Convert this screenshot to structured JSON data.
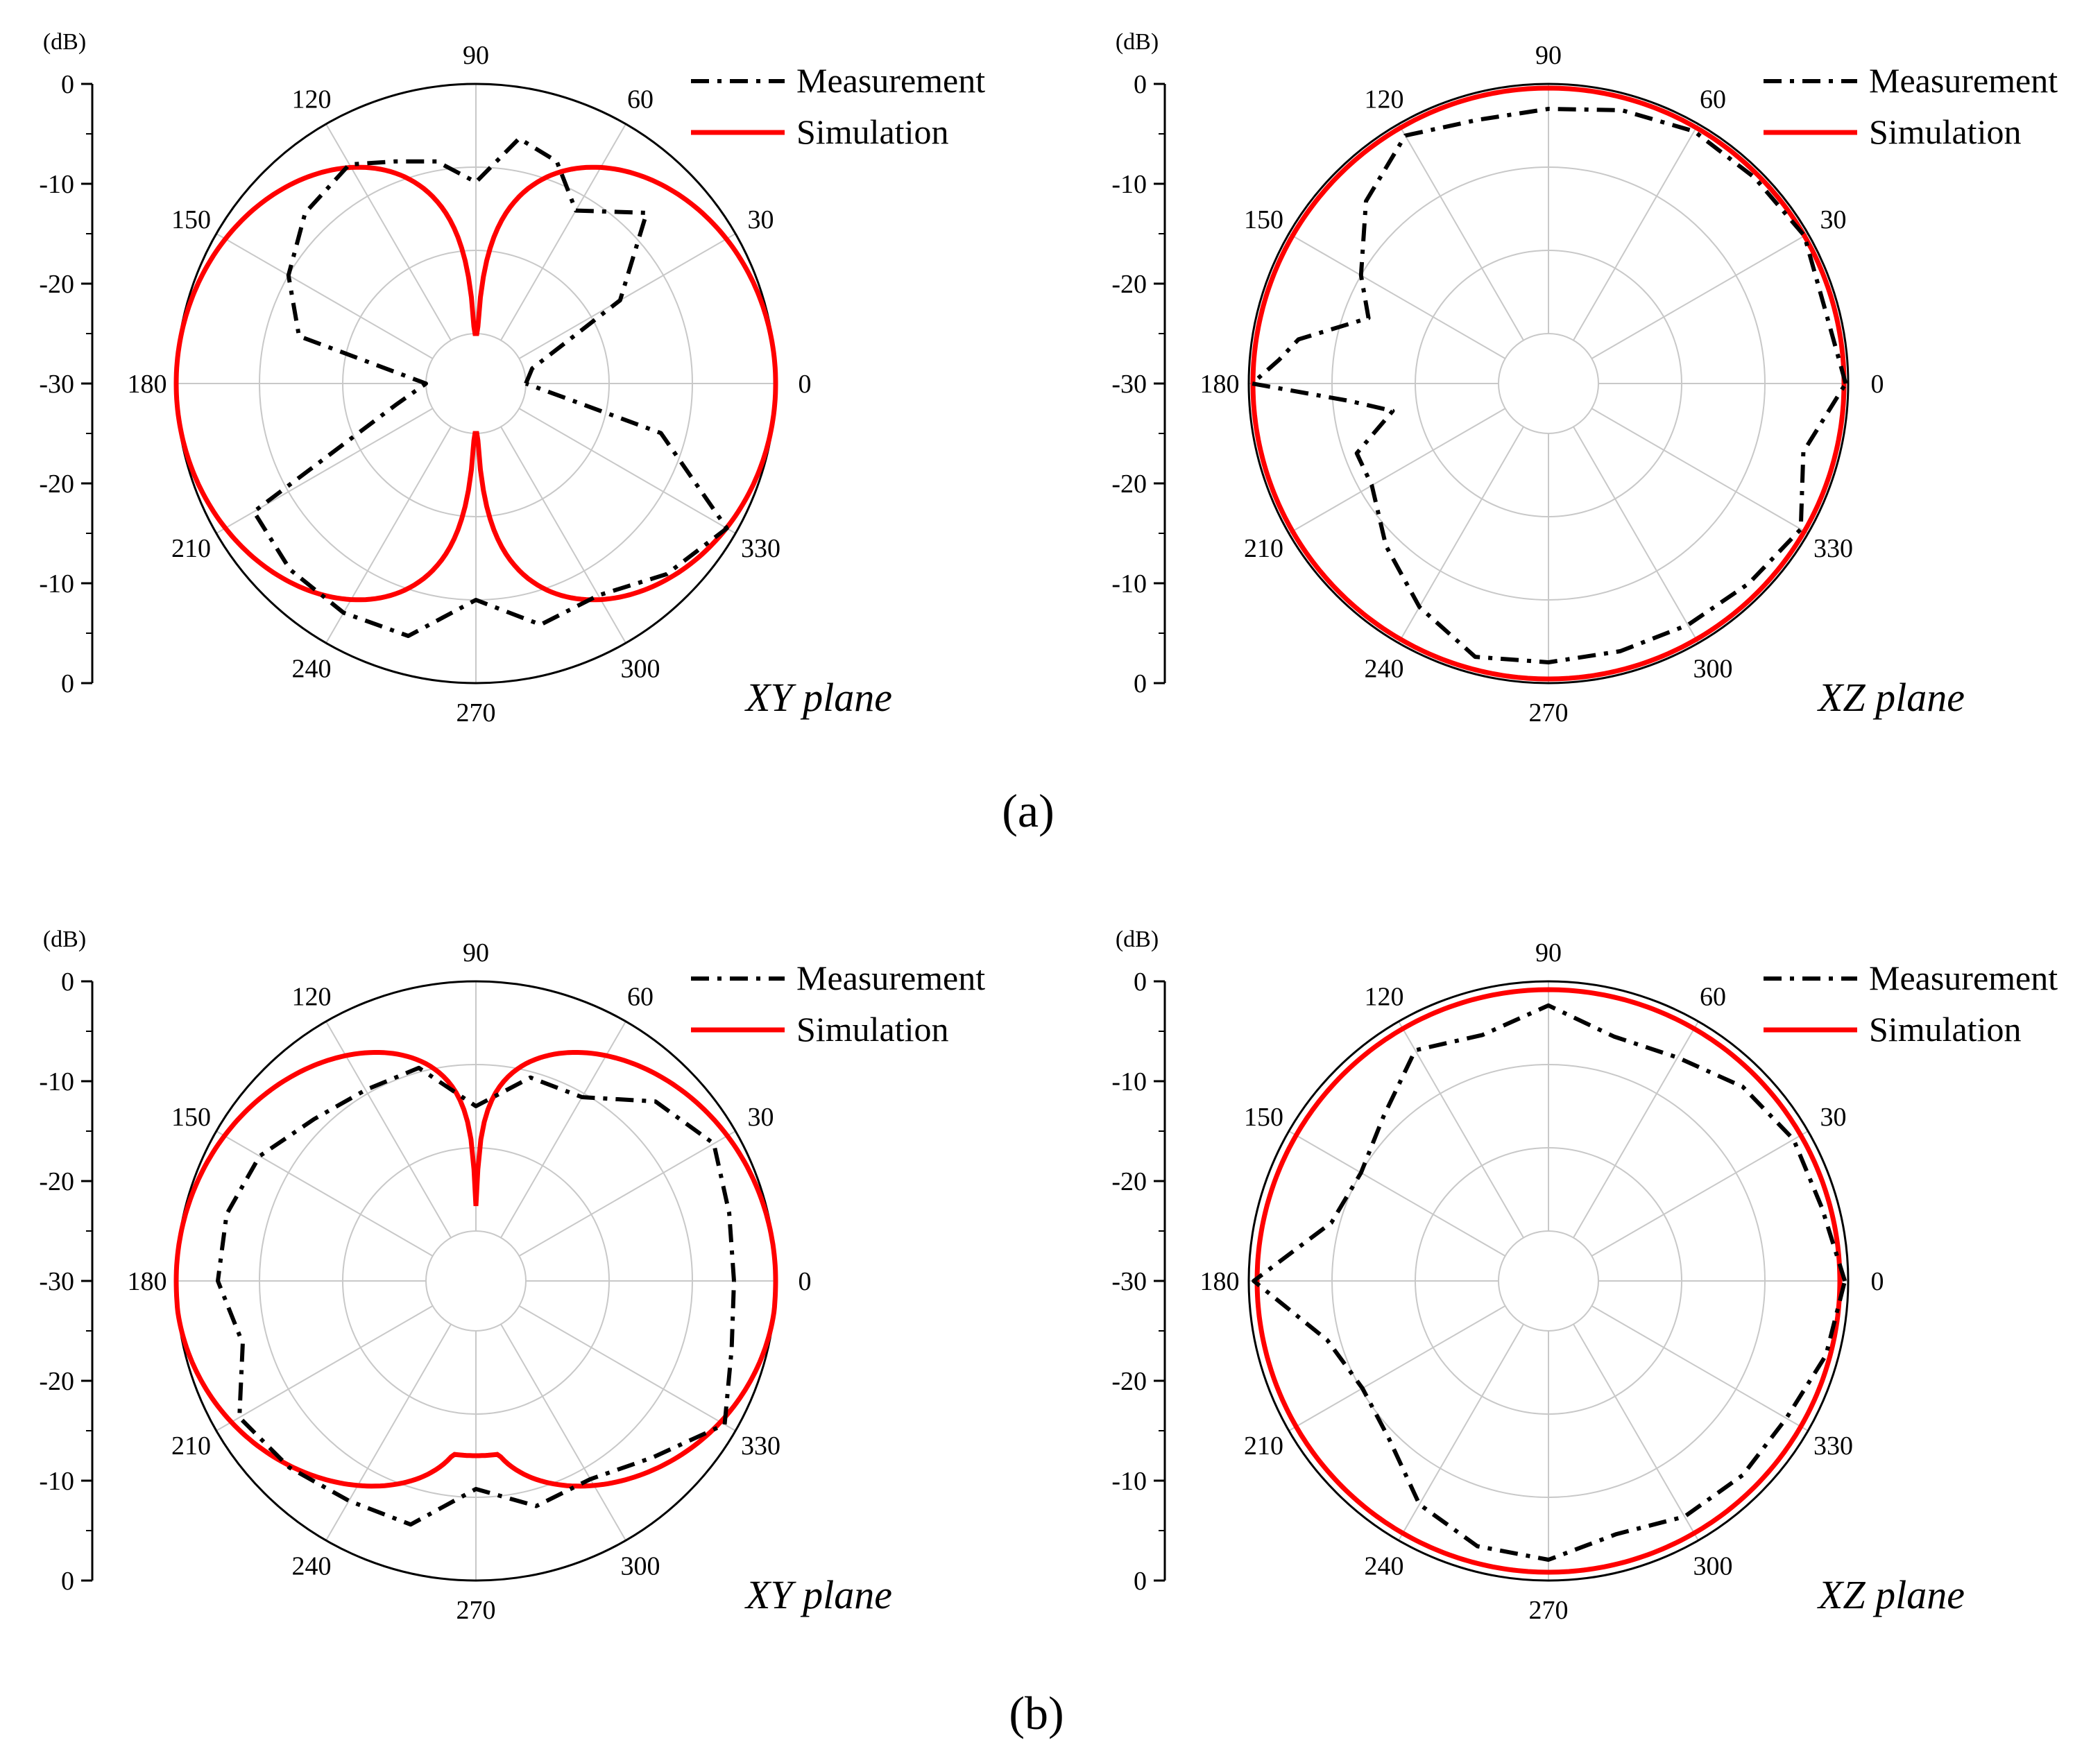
{
  "colors": {
    "measurement": "#000000",
    "simulation": "#ff0000",
    "grid": "#c8c8c8",
    "frame": "#000000"
  },
  "panel_labels": [
    "(a)",
    "(b)"
  ],
  "chart_data": [
    {
      "type": "line",
      "coordinate_system": "polar",
      "panel": "(a)",
      "plane_label": "XY plane",
      "radial_unit": "(dB)",
      "rlim": [
        -30,
        0
      ],
      "radial_ticks": [
        "0",
        "-10",
        "-20",
        "-30",
        "-20",
        "-10",
        "0"
      ],
      "angle_ticks": [
        "0",
        "30",
        "60",
        "90",
        "120",
        "150",
        "180",
        "210",
        "240",
        "270",
        "300",
        "330"
      ],
      "legend": [
        "Measurement",
        "Simulation"
      ],
      "legend_position": "top-right",
      "grid": true,
      "series": [
        {
          "name": "Measurement",
          "style": "dash-dot",
          "theta": [
            0,
            15,
            30,
            45,
            60,
            70,
            80,
            90,
            100,
            110,
            120,
            135,
            150,
            165,
            180,
            195,
            210,
            225,
            240,
            255,
            270,
            285,
            300,
            315,
            330,
            345,
            360
          ],
          "r": [
            -30,
            -29,
            -16,
            -7,
            -12,
            -7.6,
            -6.1,
            -11.8,
            -8.9,
            -7.6,
            -5.6,
            -7,
            -10,
            -14,
            -30,
            -26,
            -5.2,
            -4.4,
            -4.2,
            -4.6,
            -10,
            -6,
            -6.6,
            -3.6,
            -1.2,
            -13,
            -30
          ]
        },
        {
          "name": "Simulation",
          "style": "solid",
          "formula": "20*log10(|cos(theta)|), floor -30 dB"
        }
      ]
    },
    {
      "type": "line",
      "coordinate_system": "polar",
      "panel": "(a)",
      "plane_label": "XZ plane",
      "radial_unit": "(dB)",
      "rlim": [
        -30,
        0
      ],
      "radial_ticks": [
        "0",
        "-10",
        "-20",
        "-30",
        "-20",
        "-10",
        "0"
      ],
      "angle_ticks": [
        "0",
        "30",
        "60",
        "90",
        "120",
        "150",
        "180",
        "210",
        "240",
        "270",
        "300",
        "330"
      ],
      "legend": [
        "Measurement",
        "Simulation"
      ],
      "legend_position": "top-right",
      "grid": true,
      "series": [
        {
          "name": "Measurement",
          "style": "dash-dot",
          "theta": [
            0,
            15,
            30,
            45,
            60,
            75,
            90,
            105,
            120,
            135,
            150,
            160,
            170,
            175,
            180,
            185,
            190,
            200,
            210,
            225,
            240,
            255,
            270,
            285,
            300,
            315,
            330,
            345,
            360
          ],
          "r": [
            -0.3,
            -1.6,
            -0.5,
            -1,
            -1,
            -2,
            -3,
            -3.2,
            -1.6,
            -5,
            -10,
            -13,
            -5.5,
            -3.5,
            -0.4,
            -12,
            -17,
            -11.5,
            -11.5,
            -8.4,
            -5,
            -2,
            -2.5,
            -2.7,
            -2.5,
            -2,
            -1,
            -4.3,
            -0.3
          ]
        },
        {
          "name": "Simulation",
          "style": "solid",
          "formula": "near-isotropic, about -0.5 dB"
        }
      ]
    },
    {
      "type": "line",
      "coordinate_system": "polar",
      "panel": "(b)",
      "plane_label": "XY plane",
      "radial_unit": "(dB)",
      "rlim": [
        -30,
        0
      ],
      "radial_ticks": [
        "0",
        "-10",
        "-20",
        "-30",
        "-20",
        "-10",
        "0"
      ],
      "angle_ticks": [
        "0",
        "30",
        "60",
        "90",
        "120",
        "150",
        "180",
        "210",
        "240",
        "270",
        "300",
        "330"
      ],
      "legend": [
        "Measurement",
        "Simulation"
      ],
      "legend_position": "top-right",
      "grid": true,
      "series": [
        {
          "name": "Measurement",
          "style": "dash-dot",
          "theta": [
            0,
            15,
            30,
            45,
            60,
            75,
            90,
            105,
            120,
            135,
            150,
            165,
            180,
            195,
            210,
            225,
            240,
            255,
            270,
            285,
            300,
            315,
            330,
            345,
            360
          ],
          "r": [
            -5,
            -4.5,
            -3,
            -5.5,
            -10.5,
            -10.7,
            -15,
            -9.5,
            -9.5,
            -8.5,
            -6,
            -5,
            -5,
            -7,
            -3.2,
            -4.3,
            -5.5,
            -5.7,
            -11,
            -8,
            -8.5,
            -6,
            -1.5,
            -4.2,
            -5
          ]
        },
        {
          "name": "Simulation",
          "style": "solid",
          "formula": "two lobes with null (-27 dB) toward 90 deg and -15 dB toward 270 deg"
        }
      ]
    },
    {
      "type": "line",
      "coordinate_system": "polar",
      "panel": "(b)",
      "plane_label": "XZ plane",
      "radial_unit": "(dB)",
      "rlim": [
        -30,
        0
      ],
      "radial_ticks": [
        "0",
        "-10",
        "-20",
        "-30",
        "-20",
        "-10",
        "0"
      ],
      "angle_ticks": [
        "0",
        "30",
        "60",
        "90",
        "120",
        "150",
        "180",
        "210",
        "240",
        "270",
        "300",
        "330"
      ],
      "legend": [
        "Measurement",
        "Simulation"
      ],
      "legend_position": "top-right",
      "grid": true,
      "series": [
        {
          "name": "Measurement",
          "style": "dash-dot",
          "theta": [
            0,
            15,
            30,
            45,
            60,
            75,
            90,
            105,
            120,
            135,
            150,
            165,
            180,
            195,
            210,
            225,
            240,
            255,
            270,
            285,
            300,
            315,
            330,
            345,
            360
          ],
          "r": [
            -0.4,
            -2,
            -2,
            -3,
            -5,
            -5.6,
            -2.9,
            -5.4,
            -4,
            -8,
            -10,
            -9,
            -0.6,
            -8.5,
            -10.2,
            -9,
            -5,
            -3,
            -2.5,
            -4.5,
            -3.3,
            -3,
            -3,
            -1.5,
            -0.4
          ]
        },
        {
          "name": "Simulation",
          "style": "solid",
          "formula": "near-isotropic, about -1 dB"
        }
      ]
    }
  ]
}
